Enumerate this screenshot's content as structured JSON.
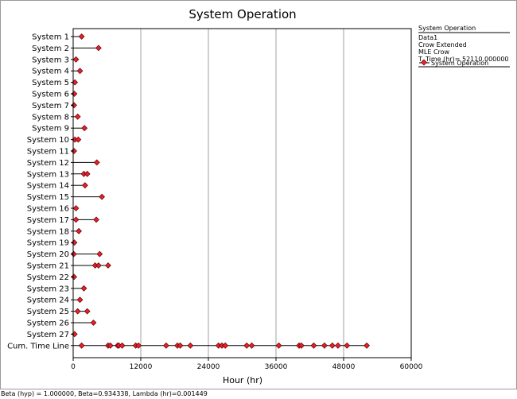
{
  "chart_data": {
    "type": "scatter",
    "title": "System Operation",
    "xlabel": "Hour (hr)",
    "ylabel": "",
    "xlim": [
      0,
      60000
    ],
    "xticks": [
      "0",
      "12000",
      "24000",
      "36000",
      "48000",
      "60000"
    ],
    "xtick_values": [
      0,
      12000,
      24000,
      36000,
      48000,
      60000
    ],
    "grid": true,
    "categories": [
      "System 1",
      "System 2",
      "System 3",
      "System 4",
      "System 5",
      "System 6",
      "System 7",
      "System 8",
      "System 9",
      "System 10",
      "System 11",
      "System 12",
      "System 13",
      "System 14",
      "System 15",
      "System 16",
      "System 17",
      "System 18",
      "System 19",
      "System 20",
      "System 21",
      "System 22",
      "System 23",
      "System 24",
      "System 25",
      "System 26",
      "System 27",
      "Cum. Time Line"
    ],
    "series": [
      {
        "name": "System 1",
        "end": 1500,
        "failures": [
          1500
        ]
      },
      {
        "name": "System 2",
        "end": 4500,
        "failures": [
          4500
        ]
      },
      {
        "name": "System 3",
        "end": 500,
        "failures": [
          500
        ]
      },
      {
        "name": "System 4",
        "end": 1200,
        "failures": [
          1200
        ]
      },
      {
        "name": "System 5",
        "end": 300,
        "failures": [
          300
        ]
      },
      {
        "name": "System 6",
        "end": 200,
        "failures": [
          200
        ]
      },
      {
        "name": "System 7",
        "end": 150,
        "failures": [
          150
        ]
      },
      {
        "name": "System 8",
        "end": 800,
        "failures": [
          800
        ]
      },
      {
        "name": "System 9",
        "end": 2000,
        "failures": [
          2000
        ]
      },
      {
        "name": "System 10",
        "end": 900,
        "failures": [
          300,
          900
        ]
      },
      {
        "name": "System 11",
        "end": 150,
        "failures": [
          150
        ]
      },
      {
        "name": "System 12",
        "end": 4200,
        "failures": [
          4200
        ]
      },
      {
        "name": "System 13",
        "end": 2500,
        "failures": [
          1900,
          2500
        ]
      },
      {
        "name": "System 14",
        "end": 2100,
        "failures": [
          2100
        ]
      },
      {
        "name": "System 15",
        "end": 5100,
        "failures": [
          5100
        ]
      },
      {
        "name": "System 16",
        "end": 500,
        "failures": [
          500
        ]
      },
      {
        "name": "System 17",
        "end": 4100,
        "failures": [
          500,
          4100
        ]
      },
      {
        "name": "System 18",
        "end": 1000,
        "failures": [
          1000
        ]
      },
      {
        "name": "System 19",
        "end": 200,
        "failures": [
          200
        ]
      },
      {
        "name": "System 20",
        "end": 4700,
        "failures": [
          100,
          4700
        ]
      },
      {
        "name": "System 21",
        "end": 6200,
        "failures": [
          3900,
          4500,
          6200
        ]
      },
      {
        "name": "System 22",
        "end": 150,
        "failures": [
          150
        ]
      },
      {
        "name": "System 23",
        "end": 1900,
        "failures": [
          1900
        ]
      },
      {
        "name": "System 24",
        "end": 1200,
        "failures": [
          1200
        ]
      },
      {
        "name": "System 25",
        "end": 2500,
        "failures": [
          800,
          2500
        ]
      },
      {
        "name": "System 26",
        "end": 3600,
        "failures": [
          3600
        ]
      },
      {
        "name": "System 27",
        "end": 250,
        "failures": [
          250
        ]
      },
      {
        "name": "Cum. Time Line",
        "end": 52110,
        "failures": [
          1500,
          6200,
          6600,
          7900,
          8100,
          8700,
          11100,
          11600,
          16500,
          18500,
          19000,
          20800,
          25800,
          26400,
          27000,
          30800,
          31700,
          36500,
          40100,
          40500,
          42700,
          44600,
          46000,
          47000,
          48600,
          52110
        ]
      }
    ]
  },
  "legend": {
    "title": "System Operation",
    "lines": [
      "Data1",
      "Crow Extended",
      "MLE Crow",
      "T. Time (hr)= 52110.000000"
    ],
    "series_label": "System Operation"
  },
  "footer": {
    "text": "Beta (hyp) = 1.000000, Beta=0.934338, Lambda (hr)=0.001449"
  },
  "colors": {
    "marker_fill": "#e8202a",
    "marker_stroke": "#5a0000",
    "line": "#000000",
    "grid": "#a0a0a0"
  }
}
